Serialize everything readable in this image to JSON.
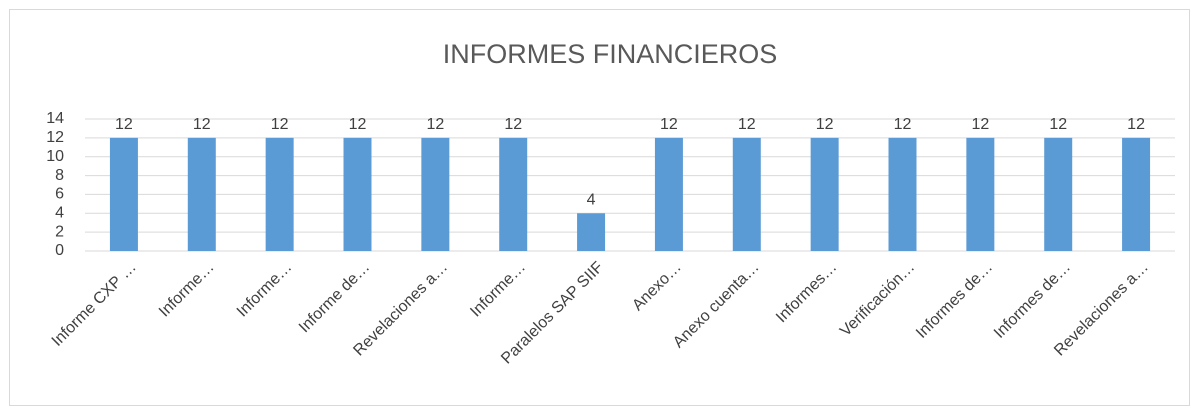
{
  "chart_data": {
    "type": "bar",
    "title": "INFORMES FINANCIEROS",
    "categories": [
      "Informe CXP …",
      "Informe…",
      "Informe…",
      "Informe de…",
      "Revelaciones a…",
      "Informe…",
      "Paralelos SAP SIIF",
      "Anexo…",
      "Anexo cuenta…",
      "Informes…",
      "Verificación…",
      "Informes de…",
      "Informes de…",
      "Revelaciones a…"
    ],
    "values": [
      12,
      12,
      12,
      12,
      12,
      12,
      4,
      12,
      12,
      12,
      12,
      12,
      12,
      12
    ],
    "color": "#5b9bd5",
    "ylim": [
      0,
      14
    ],
    "yticks": [
      0,
      2,
      4,
      6,
      8,
      10,
      12,
      14
    ],
    "grid": true
  }
}
